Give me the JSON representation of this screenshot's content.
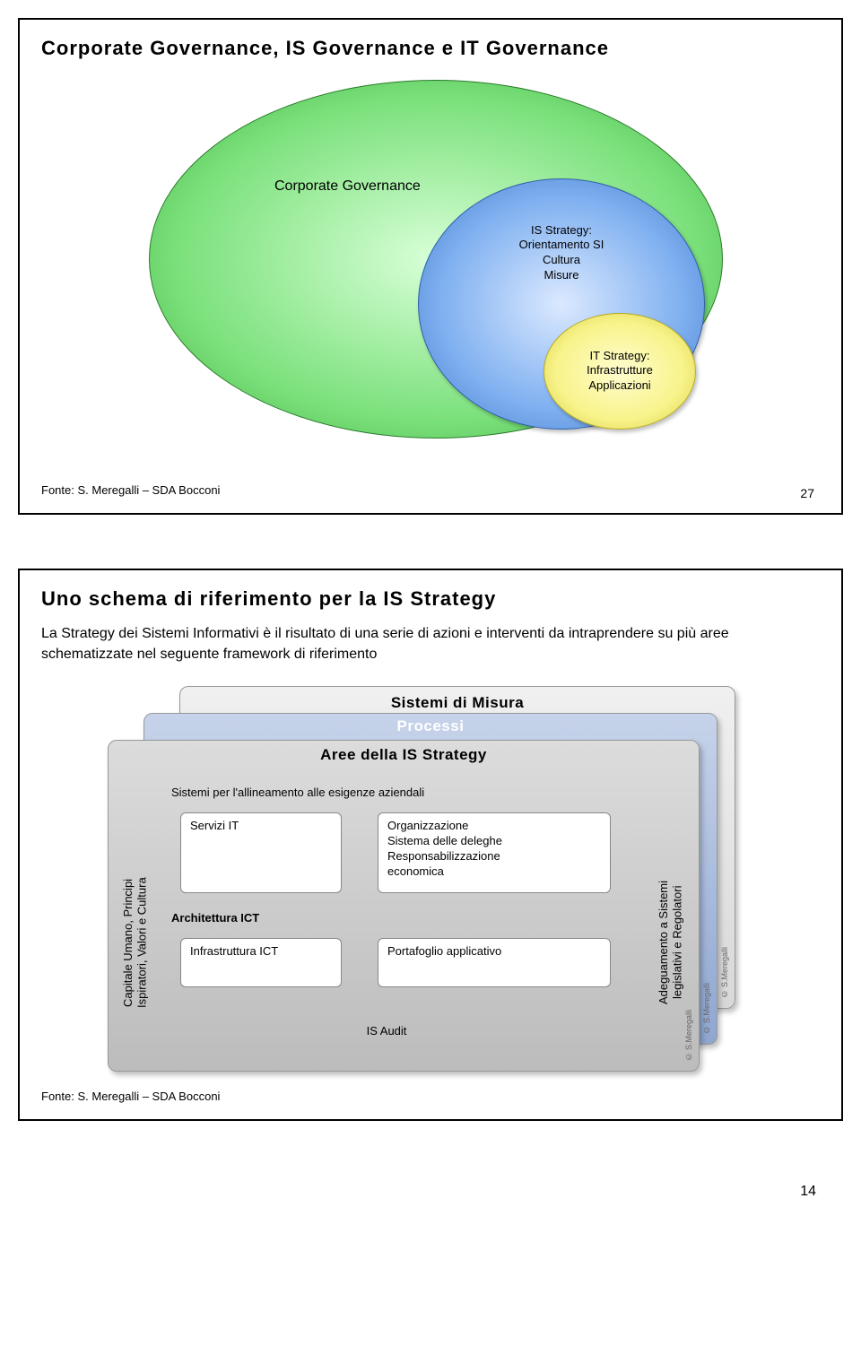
{
  "slide1": {
    "title": "Corporate Governance, IS Governance e IT Governance",
    "outer_label": "Corporate Governance",
    "mid_label": "IS Strategy:\nOrientamento SI\nCultura\nMisure",
    "inner_label": "IT Strategy:\nInfrastrutture\nApplicazioni",
    "source": "Fonte: S. Meregalli – SDA Bocconi",
    "slide_number": "27",
    "colors": {
      "outer_fill_center": "#d8ffd8",
      "outer_fill_edge": "#3fa73f",
      "outer_border": "#2a7a2a",
      "mid_fill_center": "#dbe9ff",
      "mid_fill_edge": "#3f77c9",
      "mid_border": "#3060a8",
      "inner_fill_center": "#fffdd0",
      "inner_fill_edge": "#d8cc40",
      "inner_border": "#b8ac20"
    }
  },
  "slide2": {
    "title": "Uno schema di riferimento per la IS Strategy",
    "body": "La Strategy dei Sistemi Informativi è il risultato di una serie di azioni e interventi da intraprendere su più aree schematizzate nel seguente framework di riferimento",
    "layer_back_title": "Sistemi di Misura",
    "layer_mid_title": "Processi",
    "layer_front_title": "Aree della IS Strategy",
    "left_label": "Capitale Umano, Principi\nIspiratori, Valori e Cultura",
    "right_label": "Adeguamento a Sistemi\nlegislativi e Regolatori",
    "alignment_bar": "Sistemi per l'allineamento alle esigenze aziendali",
    "servizi": "Servizi IT",
    "org": "Organizzazione\nSistema delle deleghe\nResponsabilizzazione\neconomica",
    "arch_label": "Architettura ICT",
    "infra": "Infrastruttura ICT",
    "portafoglio": "Portafoglio applicativo",
    "audit": "IS Audit",
    "copyright": "© S.Meregalli",
    "source": "Fonte: S. Meregalli – SDA Bocconi",
    "colors": {
      "back_layer_top": "#f0f0f0",
      "back_layer_bot": "#d8d8d8",
      "mid_layer_top": "#c6d3ea",
      "mid_layer_bot": "#8fa6d0",
      "front_layer_top": "#dcdcdc",
      "front_layer_bot": "#bcbcbc",
      "box_bg": "#ffffff",
      "box_border": "#888888"
    }
  },
  "doc_page_number": "14"
}
